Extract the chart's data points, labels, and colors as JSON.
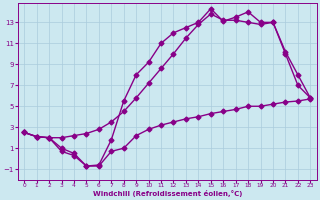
{
  "xlabel": "Windchill (Refroidissement éolien,°C)",
  "bg_color": "#cce8f0",
  "line_color": "#880088",
  "grid_color": "#aaccdd",
  "xlim": [
    -0.5,
    23.5
  ],
  "ylim": [
    -2.0,
    14.8
  ],
  "xticks": [
    0,
    1,
    2,
    3,
    4,
    5,
    6,
    7,
    8,
    9,
    10,
    11,
    12,
    13,
    14,
    15,
    16,
    17,
    18,
    19,
    20,
    21,
    22,
    23
  ],
  "yticks": [
    -1,
    1,
    3,
    5,
    7,
    9,
    11,
    13
  ],
  "line1_x": [
    0,
    1,
    2,
    3,
    4,
    5,
    6,
    7,
    8,
    9,
    10,
    11,
    12,
    13,
    14,
    15,
    16,
    17,
    18,
    19,
    20,
    21,
    22,
    23
  ],
  "line1_y": [
    2.5,
    2.1,
    2.0,
    2.0,
    2.2,
    2.4,
    2.8,
    3.5,
    4.5,
    5.8,
    7.2,
    8.6,
    10.0,
    11.5,
    12.8,
    13.8,
    13.2,
    13.2,
    13.0,
    12.8,
    13.0,
    10.2,
    8.0,
    5.8
  ],
  "line2_x": [
    0,
    1,
    2,
    3,
    4,
    5,
    6,
    7,
    8,
    9,
    10,
    11,
    12,
    13,
    14,
    15,
    16,
    17,
    18,
    19,
    20,
    21,
    22,
    23
  ],
  "line2_y": [
    2.5,
    2.1,
    2.0,
    0.7,
    0.3,
    -0.7,
    -0.6,
    1.8,
    5.5,
    8.0,
    9.2,
    11.0,
    12.0,
    12.5,
    13.0,
    14.3,
    13.1,
    13.5,
    14.0,
    13.0,
    13.0,
    10.0,
    7.0,
    5.8
  ],
  "line3_x": [
    0,
    1,
    2,
    3,
    4,
    5,
    6,
    7,
    8,
    9,
    10,
    11,
    12,
    13,
    14,
    15,
    16,
    17,
    18,
    19,
    20,
    21,
    22,
    23
  ],
  "line3_y": [
    2.5,
    2.1,
    2.0,
    1.0,
    0.5,
    -0.7,
    -0.7,
    0.7,
    1.0,
    2.2,
    2.8,
    3.2,
    3.5,
    3.8,
    4.0,
    4.3,
    4.5,
    4.7,
    5.0,
    5.0,
    5.2,
    5.4,
    5.5,
    5.7
  ],
  "marker": "D",
  "markersize": 2.5,
  "linewidth": 1.0
}
